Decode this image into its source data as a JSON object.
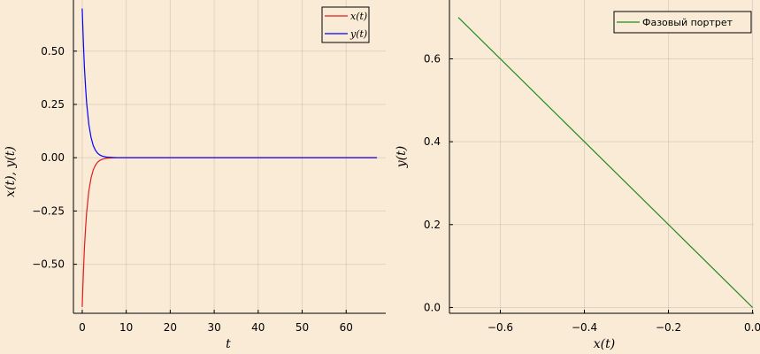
{
  "chart_data": [
    {
      "type": "line",
      "xlabel": "t",
      "ylabel": "x(t), y(t)",
      "xlim": [
        -2,
        69
      ],
      "ylim": [
        -0.73,
        0.74
      ],
      "xticks": [
        0,
        10,
        20,
        30,
        40,
        50,
        60
      ],
      "xtick_labels": [
        "0",
        "10",
        "20",
        "30",
        "40",
        "50",
        "60"
      ],
      "yticks": [
        -0.5,
        -0.25,
        0,
        0.25,
        0.5
      ],
      "ytick_labels": [
        "−0.50",
        "−0.25",
        "0.00",
        "0.25",
        "0.50"
      ],
      "grid": true,
      "legend_position": "top-right",
      "series": [
        {
          "name": "x(t)",
          "color": "#e41a1c",
          "x": [
            0,
            0.25,
            0.5,
            0.75,
            1,
            1.5,
            2,
            2.5,
            3,
            3.5,
            4,
            4.5,
            5,
            5.5,
            6,
            7,
            8,
            10,
            20,
            30,
            40,
            50,
            60,
            67
          ],
          "y": [
            -0.7,
            -0.545,
            -0.425,
            -0.331,
            -0.258,
            -0.156,
            -0.095,
            -0.057,
            -0.035,
            -0.021,
            -0.013,
            -0.008,
            -0.005,
            -0.003,
            -0.002,
            -0.001,
            0,
            0,
            0,
            0,
            0,
            0,
            0,
            0
          ]
        },
        {
          "name": "y(t)",
          "color": "#0000ff",
          "x": [
            0,
            0.25,
            0.5,
            0.75,
            1,
            1.5,
            2,
            2.5,
            3,
            3.5,
            4,
            4.5,
            5,
            5.5,
            6,
            7,
            8,
            10,
            20,
            30,
            40,
            50,
            60,
            67
          ],
          "y": [
            0.7,
            0.545,
            0.425,
            0.331,
            0.258,
            0.156,
            0.095,
            0.057,
            0.035,
            0.021,
            0.013,
            0.008,
            0.005,
            0.003,
            0.002,
            0.001,
            0,
            0,
            0,
            0,
            0,
            0,
            0,
            0
          ]
        }
      ]
    },
    {
      "type": "line",
      "xlabel": "x(t)",
      "ylabel": "y(t)",
      "xlim": [
        -0.721,
        0.003
      ],
      "ylim": [
        -0.014,
        0.742
      ],
      "xticks": [
        -0.6,
        -0.4,
        -0.2,
        0
      ],
      "xtick_labels": [
        "−0.6",
        "−0.4",
        "−0.2",
        "0.0"
      ],
      "yticks": [
        0,
        0.2,
        0.4,
        0.6
      ],
      "ytick_labels": [
        "0.0",
        "0.2",
        "0.4",
        "0.6"
      ],
      "grid": true,
      "legend_position": "top-right",
      "series": [
        {
          "name": "Фазовый портрет",
          "color": "#228b22",
          "x": [
            -0.7,
            0
          ],
          "y": [
            0.7,
            0
          ]
        }
      ]
    }
  ]
}
